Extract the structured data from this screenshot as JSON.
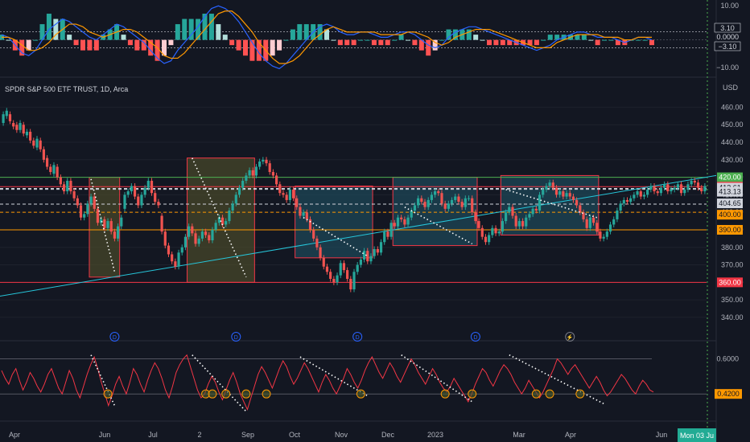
{
  "chart_data": [
    {
      "type": "macd",
      "pane": "oscillator",
      "y_ticks": [
        "10.00",
        "0.0000",
        "−10.00"
      ],
      "levels": [
        3.1,
        -3.1
      ],
      "level_labels": [
        "3.10",
        "−3.10"
      ],
      "zero_label": "0.0000",
      "ylim": [
        -13,
        14
      ],
      "series": [
        {
          "name": "",
          "color": "#2962ff",
          "values": [
            2,
            1,
            -2,
            -5,
            -6,
            -4,
            0,
            4,
            6,
            8,
            7,
            5,
            3,
            1,
            0,
            2,
            4,
            6,
            5,
            3,
            1,
            -1,
            -4,
            -7,
            -9,
            -8,
            -4,
            -1,
            2,
            5,
            9,
            12,
            13,
            12,
            10,
            7,
            3,
            -1,
            -5,
            -8,
            -10,
            -11,
            -9,
            -6,
            -3,
            0,
            3,
            5,
            6,
            5,
            3,
            2,
            2,
            3,
            3,
            2,
            1,
            1,
            2,
            3,
            3,
            2,
            0,
            -2,
            -3,
            -2,
            1,
            3,
            4,
            5,
            5,
            4,
            3,
            2,
            1,
            0,
            -1,
            -2,
            -3,
            -4,
            -3,
            -2,
            0,
            1,
            2,
            3,
            3,
            2,
            1,
            1,
            1,
            0,
            -1,
            0,
            1,
            1,
            0
          ]
        },
        {
          "name": "",
          "color": "#ff9800",
          "values": [
            1,
            1,
            0,
            -2,
            -4,
            -4,
            -3,
            -1,
            2,
            4,
            6,
            6,
            5,
            3,
            2,
            1,
            2,
            3,
            4,
            4,
            3,
            1,
            -1,
            -3,
            -6,
            -7,
            -7,
            -5,
            -2,
            1,
            4,
            7,
            10,
            11,
            11,
            9,
            6,
            3,
            -1,
            -4,
            -7,
            -9,
            -9,
            -8,
            -6,
            -3,
            0,
            2,
            4,
            5,
            4,
            3,
            3,
            3,
            3,
            3,
            2,
            2,
            2,
            2,
            3,
            3,
            2,
            1,
            -1,
            -2,
            -1,
            1,
            2,
            3,
            4,
            4,
            4,
            3,
            2,
            1,
            0,
            -1,
            -2,
            -3,
            -3,
            -3,
            -1,
            0,
            1,
            2,
            2,
            2,
            2,
            1,
            1,
            1,
            0,
            0,
            1,
            1,
            1
          ]
        }
      ]
    },
    {
      "type": "candlestick",
      "title": "SPDR S&P 500 ETF TRUST, 1D, Arca",
      "currency": "USD",
      "ylim": [
        334,
        468
      ],
      "y_ticks": [
        460,
        450,
        440,
        430,
        420,
        410,
        400,
        390,
        380,
        370,
        360,
        350,
        340
      ],
      "y_tick_labels": [
        "460.00",
        "450.00",
        "440.00",
        "430.00",
        "420.00",
        "410.00",
        "400.00",
        "390.00",
        "380.00",
        "370.00",
        "360.00",
        "350.00",
        "340.00"
      ],
      "x_labels": [
        "Apr",
        "Jun",
        "Jul",
        "2",
        "Sep",
        "Oct",
        "Nov",
        "Dec",
        "2023",
        "Mar",
        "Apr",
        "Jun",
        "Mon 03 Ju"
      ],
      "close": [
        456,
        458,
        452,
        449,
        447,
        451,
        445,
        446,
        441,
        438,
        442,
        436,
        430,
        426,
        423,
        427,
        420,
        416,
        412,
        418,
        412,
        408,
        404,
        397,
        399,
        405,
        409,
        402,
        394,
        396,
        391,
        395,
        389,
        385,
        392,
        397,
        410,
        412,
        415,
        409,
        404,
        410,
        414,
        418,
        411,
        406,
        404,
        389,
        381,
        376,
        372,
        369,
        377,
        380,
        386,
        392,
        388,
        382,
        385,
        389,
        387,
        384,
        390,
        394,
        397,
        393,
        395,
        401,
        405,
        410,
        414,
        418,
        421,
        424,
        421,
        426,
        429,
        430,
        428,
        423,
        421,
        416,
        411,
        410,
        407,
        413,
        408,
        403,
        398,
        400,
        396,
        390,
        385,
        380,
        374,
        369,
        366,
        362,
        360,
        364,
        371,
        367,
        362,
        356,
        366,
        370,
        373,
        378,
        372,
        375,
        379,
        377,
        383,
        389,
        386,
        394,
        392,
        397,
        396,
        393,
        397,
        401,
        404,
        408,
        406,
        403,
        407,
        410,
        412,
        411,
        405,
        402,
        405,
        407,
        409,
        406,
        403,
        408,
        408,
        400,
        395,
        391,
        386,
        383,
        387,
        391,
        388,
        389,
        395,
        400,
        403,
        398,
        392,
        395,
        392,
        397,
        399,
        402,
        401,
        410,
        413,
        415,
        417,
        414,
        410,
        412,
        409,
        411,
        409,
        407,
        404,
        400,
        396,
        391,
        397,
        394,
        389,
        385,
        386,
        389,
        393,
        396,
        401,
        405,
        407,
        406,
        408,
        410,
        412,
        409,
        410,
        413,
        415,
        412,
        411,
        414,
        416,
        412,
        413,
        414,
        416,
        411,
        413,
        416,
        418,
        417,
        414,
        412,
        415
      ],
      "change": [
        5,
        3,
        -4,
        -2,
        -3,
        4,
        -5,
        2,
        -5,
        -3,
        5,
        -5,
        -6,
        -5,
        -3,
        5,
        -6,
        -4,
        -4,
        6,
        -6,
        -4,
        -4,
        -7,
        2,
        6,
        4,
        -7,
        -8,
        2,
        -5,
        4,
        -6,
        -4,
        7,
        5,
        8,
        2,
        3,
        -6,
        -5,
        6,
        4,
        4,
        -7,
        -5,
        -2,
        -9,
        -8,
        -5,
        -4,
        -3,
        8,
        3,
        6,
        6,
        -4,
        -6,
        3,
        4,
        -2,
        -3,
        6,
        4,
        3,
        -4,
        2,
        6,
        4,
        5,
        4,
        4,
        3,
        3,
        -3,
        5,
        3,
        1,
        -2,
        -5,
        -2,
        -5,
        -5,
        -1,
        -3,
        6,
        -5,
        -5,
        -5,
        2,
        -4,
        -6,
        -5,
        -5,
        -6,
        -5,
        -3,
        -4,
        -2,
        4,
        7,
        -4,
        -5,
        -6,
        10,
        4,
        3,
        5,
        -6,
        3,
        4,
        -2,
        6,
        6,
        -3,
        8,
        -2,
        5,
        -1,
        -3,
        4,
        4,
        3,
        4,
        -2,
        -3,
        4,
        3,
        2,
        -1,
        -6,
        -3,
        3,
        2,
        2,
        -3,
        -3,
        5,
        0,
        -8,
        -5,
        -4,
        -5,
        -3,
        4,
        4,
        -3,
        1,
        6,
        5,
        3,
        -5,
        -6,
        3,
        -3,
        5,
        2,
        3,
        -1,
        9,
        3,
        2,
        2,
        -3,
        -4,
        2,
        -3,
        2,
        -2,
        -2,
        -3,
        -4,
        -4,
        -5,
        6,
        -3,
        -5,
        -4,
        1,
        3,
        4,
        3,
        5,
        4,
        2,
        -1,
        2,
        2,
        2,
        -3,
        1,
        3,
        2,
        -3,
        -1,
        3,
        2,
        -4,
        1,
        1,
        2,
        -5,
        2,
        3,
        2,
        -1,
        -3,
        -2,
        3
      ],
      "horizontal_lines": [
        {
          "value": 420.0,
          "color": "#4caf50",
          "style": "solid",
          "label": "420.00"
        },
        {
          "value": 414.65,
          "color": "#f23645",
          "style": "solid",
          "label": "414.65"
        },
        {
          "value": 413.61,
          "color": "#d1d4dc",
          "style": "dashed",
          "label": "413.61"
        },
        {
          "value": 413.13,
          "color": "#d1d4dc",
          "style": "dashed",
          "label": "413.13"
        },
        {
          "value": 404.65,
          "color": "#d1d4dc",
          "style": "dashed",
          "label": "404.65"
        },
        {
          "value": 400.0,
          "color": "#ff9800",
          "style": "dashed",
          "label": "400.00"
        },
        {
          "value": 390.0,
          "color": "#ff9800",
          "style": "solid",
          "label": "390.00"
        },
        {
          "value": 360.0,
          "color": "#f23645",
          "style": "solid",
          "label": "360.00"
        }
      ],
      "trendline": {
        "from": [
          0,
          352
        ],
        "to": [
          214,
          421
        ],
        "color": "#26c6da"
      },
      "boxes": [
        {
          "x": [
            26,
            34
          ],
          "y": [
            363,
            420
          ],
          "fill": "#4a4a2a"
        },
        {
          "x": [
            55,
            74
          ],
          "y": [
            360,
            431
          ],
          "fill": "#4a4a2a"
        },
        {
          "x": [
            87,
            109
          ],
          "y": [
            374,
            415
          ],
          "fill": "#1e4a5a"
        },
        {
          "x": [
            116,
            140
          ],
          "y": [
            381,
            420
          ],
          "fill": "#1e4a5a"
        },
        {
          "x": [
            148,
            176
          ],
          "y": [
            387,
            421
          ],
          "fill": "#1e4a5a"
        }
      ],
      "dotted_lines": [
        {
          "from": [
            26,
            419
          ],
          "to": [
            33,
            366
          ]
        },
        {
          "from": [
            56,
            431
          ],
          "to": [
            72,
            363
          ]
        },
        {
          "from": [
            89,
            397
          ],
          "to": [
            108,
            375
          ]
        },
        {
          "from": [
            119,
            403
          ],
          "to": [
            139,
            382
          ]
        },
        {
          "from": [
            149,
            413
          ],
          "to": [
            176,
            397
          ]
        }
      ],
      "dividend_marks": [
        33,
        69,
        105,
        140
      ],
      "lightning_mark": 168
    },
    {
      "type": "rsi",
      "pane": "indicator",
      "y_ticks": [
        "0.6000",
        "0.4200"
      ],
      "levels": [
        0.6,
        0.42
      ],
      "ylim": [
        0.33,
        0.66
      ],
      "values": [
        0.54,
        0.5,
        0.47,
        0.52,
        0.55,
        0.49,
        0.44,
        0.48,
        0.53,
        0.5,
        0.46,
        0.43,
        0.47,
        0.52,
        0.55,
        0.5,
        0.45,
        0.42,
        0.48,
        0.54,
        0.5,
        0.44,
        0.4,
        0.46,
        0.52,
        0.57,
        0.61,
        0.55,
        0.48,
        0.42,
        0.36,
        0.41,
        0.47,
        0.51,
        0.46,
        0.42,
        0.48,
        0.55,
        0.52,
        0.47,
        0.43,
        0.49,
        0.54,
        0.58,
        0.55,
        0.5,
        0.44,
        0.4,
        0.46,
        0.53,
        0.57,
        0.6,
        0.62,
        0.56,
        0.5,
        0.44,
        0.4,
        0.42,
        0.47,
        0.51,
        0.48,
        0.43,
        0.39,
        0.44,
        0.49,
        0.53,
        0.48,
        0.42,
        0.38,
        0.34,
        0.4,
        0.46,
        0.52,
        0.56,
        0.53,
        0.49,
        0.45,
        0.5,
        0.55,
        0.59,
        0.56,
        0.51,
        0.47,
        0.5,
        0.54,
        0.58,
        0.55,
        0.51,
        0.47,
        0.43,
        0.48,
        0.52,
        0.49,
        0.45,
        0.42,
        0.46,
        0.5,
        0.55,
        0.52,
        0.48,
        0.45,
        0.49,
        0.54,
        0.58,
        0.61,
        0.57,
        0.53,
        0.5,
        0.54,
        0.58,
        0.55,
        0.51,
        0.48,
        0.52,
        0.56,
        0.6,
        0.57,
        0.53,
        0.5,
        0.47,
        0.51,
        0.55,
        0.52,
        0.48,
        0.45,
        0.43,
        0.46,
        0.5,
        0.47,
        0.44,
        0.41,
        0.38,
        0.42,
        0.47,
        0.51,
        0.55,
        0.53,
        0.49,
        0.46,
        0.5,
        0.54,
        0.57,
        0.55,
        0.52,
        0.48,
        0.45,
        0.42,
        0.45,
        0.49,
        0.46,
        0.43,
        0.4,
        0.43,
        0.47,
        0.51,
        0.55,
        0.6,
        0.58,
        0.55,
        0.52,
        0.55,
        0.57,
        0.54,
        0.51,
        0.48,
        0.45,
        0.48,
        0.51,
        0.48,
        0.44,
        0.41,
        0.43,
        0.46,
        0.49,
        0.52,
        0.5,
        0.47,
        0.44,
        0.42,
        0.46,
        0.49,
        0.47,
        0.44,
        0.43
      ],
      "value_label": "0.4200",
      "dotted_lines": [
        {
          "from": [
            26,
            0.62
          ],
          "to": [
            33,
            0.36
          ]
        },
        {
          "from": [
            56,
            0.62
          ],
          "to": [
            72,
            0.33
          ]
        },
        {
          "from": [
            88,
            0.61
          ],
          "to": [
            108,
            0.41
          ]
        },
        {
          "from": [
            118,
            0.62
          ],
          "to": [
            139,
            0.38
          ]
        },
        {
          "from": [
            150,
            0.62
          ],
          "to": [
            178,
            0.37
          ]
        }
      ],
      "circle_marks": [
        31,
        60,
        62,
        66,
        72,
        78,
        106,
        131,
        139,
        158,
        162,
        171
      ]
    }
  ]
}
